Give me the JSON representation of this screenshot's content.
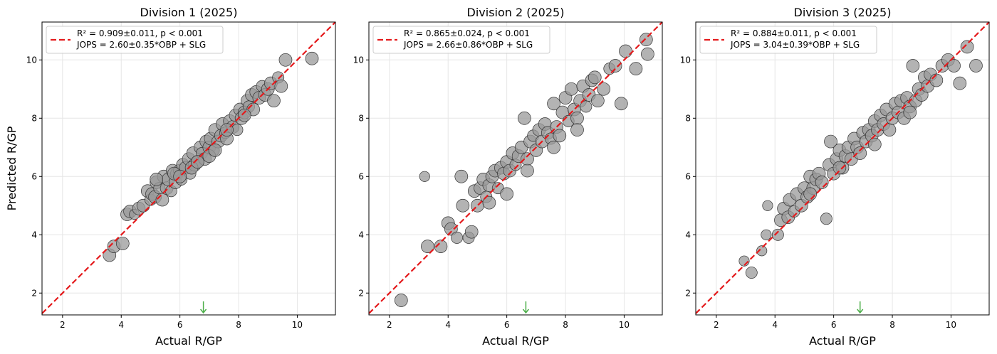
{
  "chart_data": [
    {
      "type": "scatter",
      "title": "Division 1 (2025)",
      "xlabel": "Actual R/GP",
      "ylabel": "Predicted R/GP",
      "xlim": [
        1.3,
        11.3
      ],
      "ylim": [
        1.25,
        11.3
      ],
      "xticks": [
        2,
        4,
        6,
        8,
        10
      ],
      "yticks": [
        2,
        4,
        6,
        8,
        10
      ],
      "grid": true,
      "legend_position": "top-left",
      "series": [
        {
          "name": "R² = 0.909±0.011, p < 0.001\nJOPS = 2.60±0.35*OBP + SLG",
          "kind": "line",
          "x": [
            1.3,
            11.3
          ],
          "y": [
            1.3,
            11.3
          ],
          "color": "#e41a1c"
        }
      ],
      "legend_lines": [
        "R² = 0.909±0.011, p < 0.001",
        "JOPS = 2.60±0.35*OBP + SLG"
      ],
      "arrow_x": 6.8,
      "marker_color": "#999999",
      "arrow_color": "#4daf4a",
      "points": {
        "x": [
          3.6,
          3.75,
          4.05,
          4.2,
          4.3,
          4.45,
          4.6,
          4.75,
          4.9,
          5.0,
          5.05,
          5.15,
          5.2,
          5.3,
          5.4,
          5.45,
          5.55,
          5.6,
          5.7,
          5.75,
          5.85,
          5.9,
          6.0,
          6.05,
          6.1,
          6.2,
          6.3,
          6.35,
          6.45,
          6.5,
          6.6,
          6.7,
          6.75,
          6.85,
          6.9,
          7.0,
          7.05,
          7.15,
          7.2,
          7.3,
          7.4,
          7.45,
          7.55,
          7.6,
          7.7,
          7.8,
          7.9,
          7.95,
          8.05,
          8.1,
          8.2,
          8.3,
          8.35,
          8.45,
          8.5,
          8.6,
          8.7,
          8.8,
          8.9,
          9.0,
          9.1,
          9.2,
          9.35,
          9.45,
          9.6,
          10.5,
          5.2,
          5.8,
          6.4,
          7.0,
          7.6,
          8.2,
          6.0,
          6.6,
          7.2
        ],
        "y": [
          3.3,
          3.6,
          3.7,
          4.7,
          4.8,
          4.7,
          4.9,
          5.0,
          5.5,
          5.2,
          5.4,
          5.3,
          5.8,
          5.6,
          5.2,
          6.0,
          5.6,
          5.9,
          5.5,
          6.2,
          5.8,
          6.1,
          6.2,
          5.9,
          6.4,
          6.3,
          6.6,
          6.1,
          6.8,
          6.4,
          6.5,
          7.0,
          6.8,
          6.6,
          7.2,
          7.0,
          7.3,
          6.9,
          7.6,
          7.2,
          7.4,
          7.8,
          7.5,
          7.3,
          7.9,
          7.7,
          8.1,
          7.6,
          8.3,
          8.0,
          8.2,
          8.6,
          8.4,
          8.8,
          8.3,
          8.9,
          8.7,
          9.1,
          8.8,
          9.0,
          9.2,
          8.6,
          9.4,
          9.1,
          10.0,
          10.05,
          5.9,
          6.1,
          6.3,
          6.7,
          7.6,
          8.1,
          6.0,
          6.5,
          6.9
        ],
        "size": [
          1,
          1,
          1,
          1,
          1,
          0.8,
          1,
          1,
          1,
          0.9,
          1,
          1,
          1,
          0.9,
          1,
          1,
          1,
          1,
          0.9,
          1,
          1,
          1,
          1,
          0.9,
          1,
          1,
          1,
          0.9,
          1,
          1,
          1,
          1,
          0.9,
          1,
          1,
          1,
          1,
          0.9,
          1,
          1,
          1,
          1,
          0.9,
          1,
          1,
          1,
          1,
          0.9,
          1,
          1,
          1,
          1,
          0.9,
          1,
          1,
          1,
          1,
          0.9,
          1,
          1,
          1,
          1,
          0.9,
          1,
          1,
          1,
          1,
          1,
          1,
          1,
          1,
          1,
          1,
          1,
          1
        ]
      }
    },
    {
      "type": "scatter",
      "title": "Division 2 (2025)",
      "xlabel": "Actual R/GP",
      "ylabel": "",
      "xlim": [
        1.3,
        11.3
      ],
      "ylim": [
        1.25,
        11.3
      ],
      "xticks": [
        2,
        4,
        6,
        8,
        10
      ],
      "yticks": [
        2,
        4,
        6,
        8,
        10
      ],
      "grid": true,
      "legend_position": "top-left",
      "legend_lines": [
        "R² = 0.865±0.024, p < 0.001",
        "JOPS = 2.66±0.86*OBP + SLG"
      ],
      "arrow_x": 6.65,
      "marker_color": "#999999",
      "arrow_color": "#4daf4a",
      "points": {
        "x": [
          2.4,
          3.2,
          3.3,
          3.75,
          4.0,
          4.1,
          4.3,
          4.45,
          4.5,
          4.7,
          4.8,
          4.9,
          5.0,
          5.1,
          5.2,
          5.3,
          5.4,
          5.5,
          5.6,
          5.7,
          5.8,
          5.9,
          6.0,
          6.1,
          6.2,
          6.3,
          6.4,
          6.5,
          6.6,
          6.7,
          6.8,
          6.9,
          7.0,
          7.1,
          7.2,
          7.3,
          7.4,
          7.5,
          7.6,
          7.7,
          7.8,
          7.9,
          8.0,
          8.1,
          8.2,
          8.3,
          8.4,
          8.5,
          8.6,
          8.7,
          8.8,
          8.9,
          9.0,
          9.1,
          9.3,
          9.5,
          9.7,
          9.9,
          10.05,
          10.4,
          10.75,
          10.8,
          6.7,
          7.6,
          8.4,
          5.4,
          6.0
        ],
        "y": [
          1.75,
          6.0,
          3.6,
          3.6,
          4.4,
          4.2,
          3.9,
          6.0,
          5.0,
          3.9,
          4.1,
          5.5,
          5.0,
          5.6,
          5.9,
          5.3,
          5.7,
          6.0,
          6.2,
          5.6,
          6.3,
          6.1,
          6.5,
          6.2,
          6.8,
          6.4,
          6.7,
          7.0,
          8.0,
          6.6,
          7.2,
          7.4,
          6.9,
          7.6,
          7.2,
          7.8,
          7.5,
          7.3,
          8.5,
          7.7,
          7.4,
          8.2,
          8.7,
          7.9,
          9.0,
          8.3,
          8.0,
          8.6,
          9.1,
          8.4,
          8.8,
          9.3,
          9.4,
          8.6,
          9.0,
          9.7,
          9.8,
          8.5,
          10.3,
          9.7,
          10.7,
          10.2,
          6.2,
          7.0,
          7.6,
          5.1,
          5.4
        ],
        "size": [
          1,
          0.8,
          1,
          1,
          1,
          1,
          0.9,
          1,
          1,
          0.9,
          1,
          1,
          1,
          1,
          1,
          0.9,
          1,
          1,
          1,
          0.9,
          1,
          1,
          1,
          1,
          1,
          0.9,
          1,
          1,
          1,
          1,
          1,
          0.9,
          1,
          1,
          1,
          1,
          1,
          0.9,
          1,
          1,
          1,
          1,
          1,
          0.9,
          1,
          1,
          1,
          1,
          1,
          0.9,
          1,
          1,
          1,
          1,
          1,
          0.9,
          1,
          1,
          1,
          1,
          1,
          1,
          1,
          1,
          1,
          1,
          1
        ]
      }
    },
    {
      "type": "scatter",
      "title": "Division 3 (2025)",
      "xlabel": "Actual R/GP",
      "ylabel": "",
      "xlim": [
        1.3,
        11.3
      ],
      "ylim": [
        1.25,
        11.3
      ],
      "xticks": [
        2,
        4,
        6,
        8,
        10
      ],
      "yticks": [
        2,
        4,
        6,
        8,
        10
      ],
      "grid": true,
      "legend_position": "top-left",
      "legend_lines": [
        "R² = 0.884±0.011, p < 0.001",
        "JOPS = 3.04±0.39*OBP + SLG"
      ],
      "arrow_x": 6.9,
      "marker_color": "#999999",
      "arrow_color": "#4daf4a",
      "points": {
        "x": [
          2.95,
          3.2,
          3.55,
          3.7,
          3.75,
          4.1,
          4.2,
          4.3,
          4.45,
          4.5,
          4.65,
          4.75,
          4.9,
          5.0,
          5.1,
          5.2,
          5.3,
          5.4,
          5.5,
          5.6,
          5.75,
          5.85,
          5.9,
          6.0,
          6.1,
          6.2,
          6.3,
          6.4,
          6.5,
          6.6,
          6.7,
          6.8,
          6.9,
          7.0,
          7.1,
          7.2,
          7.3,
          7.4,
          7.5,
          7.6,
          7.7,
          7.8,
          7.9,
          8.0,
          8.1,
          8.2,
          8.3,
          8.4,
          8.5,
          8.6,
          8.7,
          8.8,
          8.9,
          9.0,
          9.1,
          9.2,
          9.3,
          9.5,
          9.7,
          9.9,
          10.1,
          10.3,
          10.55,
          10.85,
          5.2,
          6.2,
          7.4,
          8.6
        ],
        "y": [
          3.1,
          2.7,
          3.45,
          4.0,
          5.0,
          4.0,
          4.5,
          4.9,
          4.6,
          5.2,
          4.8,
          5.4,
          5.0,
          5.6,
          5.3,
          6.0,
          5.6,
          5.9,
          6.1,
          5.8,
          4.55,
          6.4,
          7.2,
          6.1,
          6.6,
          6.9,
          6.3,
          6.7,
          7.0,
          6.6,
          7.3,
          7.0,
          6.8,
          7.5,
          7.2,
          7.6,
          7.4,
          7.9,
          7.6,
          8.1,
          7.8,
          8.3,
          7.6,
          8.0,
          8.5,
          8.2,
          8.6,
          8.0,
          8.7,
          8.4,
          9.8,
          8.6,
          9.0,
          8.8,
          9.4,
          9.1,
          9.5,
          9.3,
          9.8,
          10.0,
          9.8,
          9.2,
          10.45,
          9.8,
          5.4,
          6.3,
          7.1,
          8.2
        ],
        "size": [
          0.8,
          0.9,
          0.8,
          0.8,
          0.8,
          0.9,
          1,
          1,
          1,
          1,
          0.9,
          1,
          1,
          1,
          1,
          1,
          1,
          1,
          1,
          1,
          0.9,
          1,
          1,
          1,
          1,
          1,
          1,
          1,
          1,
          1,
          1,
          1,
          1,
          1,
          1,
          1,
          1,
          1,
          1,
          1,
          1,
          1,
          1,
          1,
          1,
          1,
          1,
          1,
          1,
          1,
          1,
          1,
          1,
          1,
          1,
          1,
          1,
          1,
          1,
          1,
          1,
          1,
          1,
          1,
          1,
          1,
          1,
          1
        ]
      }
    }
  ]
}
